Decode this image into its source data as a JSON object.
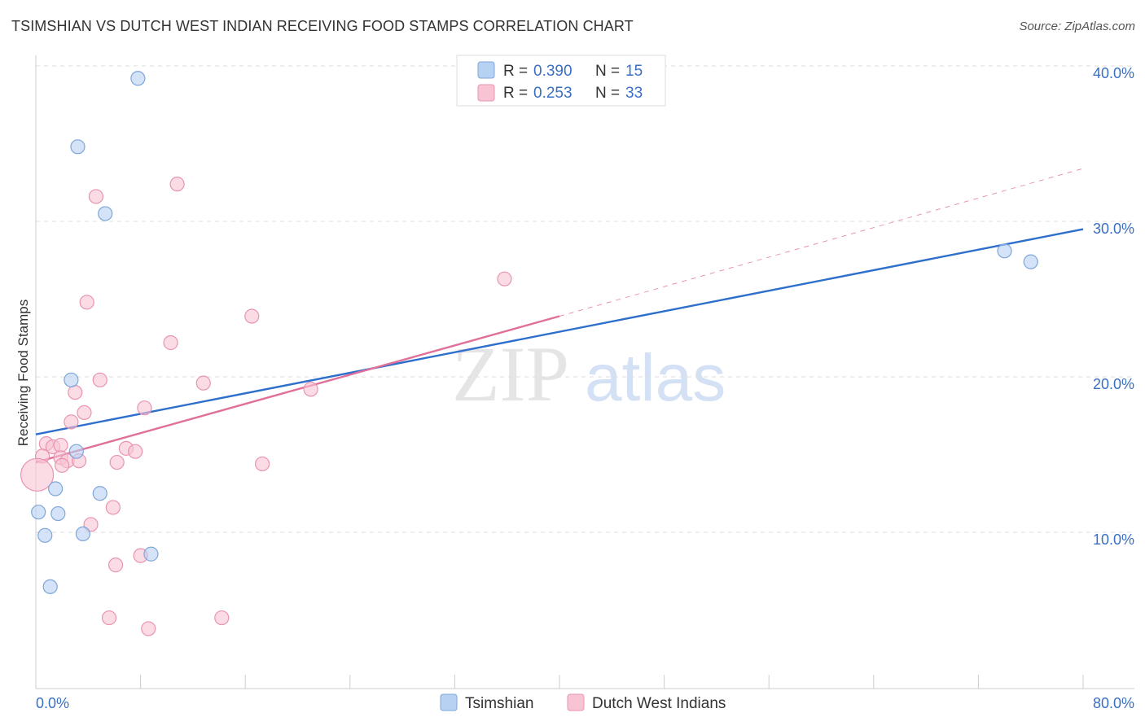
{
  "header": {
    "title": "TSIMSHIAN VS DUTCH WEST INDIAN RECEIVING FOOD STAMPS CORRELATION CHART",
    "source": "Source: ZipAtlas.com"
  },
  "watermark": {
    "zip": "ZIP",
    "atlas": "atlas"
  },
  "colors": {
    "blue_fill": "#b7d1f2",
    "blue_stroke": "#7ea6da",
    "blue_line": "#2e6fcc",
    "pink_fill": "#f8c4d4",
    "pink_stroke": "#e894b0",
    "pink_line": "#e0709a",
    "tick_text": "#3a6fc4",
    "grid": "#dddddd"
  },
  "chart_data": {
    "type": "scatter",
    "title": "TSIMSHIAN VS DUTCH WEST INDIAN RECEIVING FOOD STAMPS CORRELATION CHART",
    "xlabel": "",
    "ylabel": "Receiving Food Stamps",
    "xlim": [
      0,
      80
    ],
    "ylim": [
      0,
      42
    ],
    "x_tick_labels": [
      {
        "value": 0,
        "label": "0.0%"
      },
      {
        "value": 80,
        "label": "80.0%"
      }
    ],
    "y_tick_labels": [
      {
        "value": 10,
        "label": "10.0%"
      },
      {
        "value": 20,
        "label": "20.0%"
      },
      {
        "value": 30,
        "label": "30.0%"
      },
      {
        "value": 40,
        "label": "40.0%"
      }
    ],
    "x_minor_ticks": [
      0,
      8,
      16,
      24,
      32,
      40,
      48,
      56,
      64,
      72,
      80
    ],
    "grid": true,
    "legend_position": "top-center",
    "legend": [
      {
        "r_label": "R =",
        "r_value": "0.390",
        "n_label": "N =",
        "n_value": "15",
        "swatch": "blue"
      },
      {
        "r_label": "R =",
        "r_value": "0.253",
        "n_label": "N =",
        "n_value": "33",
        "swatch": "pink"
      }
    ],
    "series": [
      {
        "name": "Tsimshian",
        "color": "blue",
        "points": [
          {
            "x": 7.8,
            "y": 39.2
          },
          {
            "x": 3.2,
            "y": 34.8
          },
          {
            "x": 5.3,
            "y": 30.5
          },
          {
            "x": 2.7,
            "y": 19.8
          },
          {
            "x": 3.1,
            "y": 15.2
          },
          {
            "x": 1.5,
            "y": 12.8
          },
          {
            "x": 4.9,
            "y": 12.5
          },
          {
            "x": 0.2,
            "y": 11.3
          },
          {
            "x": 1.7,
            "y": 11.2
          },
          {
            "x": 0.7,
            "y": 9.8
          },
          {
            "x": 3.6,
            "y": 9.9
          },
          {
            "x": 8.8,
            "y": 8.6
          },
          {
            "x": 1.1,
            "y": 6.5
          },
          {
            "x": 74.0,
            "y": 28.1
          },
          {
            "x": 76.0,
            "y": 27.4
          }
        ],
        "trend": {
          "x0": 0,
          "y0": 16.3,
          "x1": 80,
          "y1": 29.5
        }
      },
      {
        "name": "Dutch West Indians",
        "color": "pink",
        "points": [
          {
            "x": 4.6,
            "y": 31.6
          },
          {
            "x": 10.8,
            "y": 32.4
          },
          {
            "x": 3.9,
            "y": 24.8
          },
          {
            "x": 16.5,
            "y": 23.9
          },
          {
            "x": 10.3,
            "y": 22.2
          },
          {
            "x": 4.9,
            "y": 19.8
          },
          {
            "x": 12.8,
            "y": 19.6
          },
          {
            "x": 21.0,
            "y": 19.2
          },
          {
            "x": 3.0,
            "y": 19.0
          },
          {
            "x": 8.3,
            "y": 18.0
          },
          {
            "x": 3.7,
            "y": 17.7
          },
          {
            "x": 2.7,
            "y": 17.1
          },
          {
            "x": 0.8,
            "y": 15.7
          },
          {
            "x": 1.3,
            "y": 15.5
          },
          {
            "x": 1.9,
            "y": 15.6
          },
          {
            "x": 6.9,
            "y": 15.4
          },
          {
            "x": 7.6,
            "y": 15.2
          },
          {
            "x": 0.5,
            "y": 14.9
          },
          {
            "x": 1.9,
            "y": 14.8
          },
          {
            "x": 2.4,
            "y": 14.6
          },
          {
            "x": 3.3,
            "y": 14.6
          },
          {
            "x": 6.2,
            "y": 14.5
          },
          {
            "x": 17.3,
            "y": 14.4
          },
          {
            "x": 2.0,
            "y": 14.3
          },
          {
            "x": 0.1,
            "y": 13.7
          },
          {
            "x": 5.9,
            "y": 11.6
          },
          {
            "x": 4.2,
            "y": 10.5
          },
          {
            "x": 6.1,
            "y": 7.9
          },
          {
            "x": 8.0,
            "y": 8.5
          },
          {
            "x": 35.8,
            "y": 26.3
          },
          {
            "x": 5.6,
            "y": 4.5
          },
          {
            "x": 8.6,
            "y": 3.8
          },
          {
            "x": 14.2,
            "y": 4.5
          }
        ],
        "trend": {
          "x0": 0,
          "y0": 14.5,
          "x1": 40,
          "y1": 23.9
        },
        "trend_extension": {
          "x0": 40,
          "y0": 23.9,
          "x1": 80,
          "y1": 33.4
        }
      }
    ],
    "bottom_legend": [
      {
        "label": "Tsimshian",
        "swatch": "blue"
      },
      {
        "label": "Dutch West Indians",
        "swatch": "pink"
      }
    ]
  }
}
